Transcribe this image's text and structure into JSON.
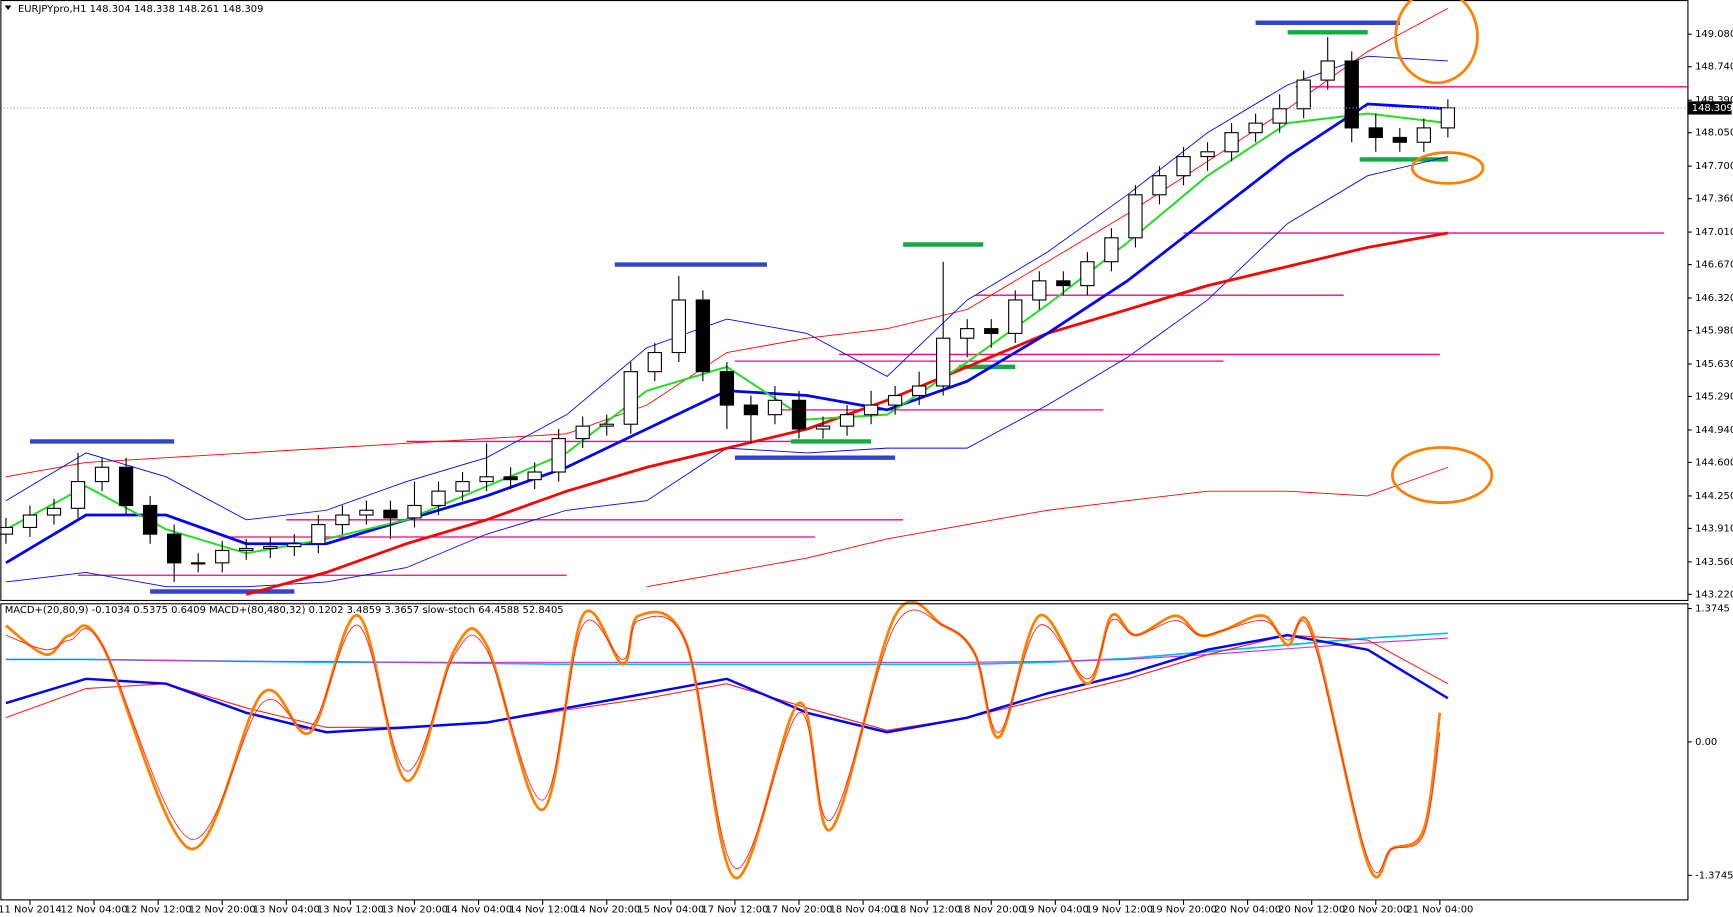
{
  "chart_data": [
    {
      "type": "candlestick",
      "title": "EURJPYpro,H1  148.304 148.338 148.261 148.309",
      "xlim": [
        -0.7,
        209.9
      ],
      "ylim": [
        143.162,
        149.438
      ],
      "yticks": [
        {
          "value": 149.08,
          "label": "149.080"
        },
        {
          "value": 148.74,
          "label": "148.740"
        },
        {
          "value": 148.39,
          "label": "148.390"
        },
        {
          "value": 148.05,
          "label": "148.050"
        },
        {
          "value": 147.7,
          "label": "147.700"
        },
        {
          "value": 147.36,
          "label": "147.360"
        },
        {
          "value": 147.01,
          "label": "147.010"
        },
        {
          "value": 146.67,
          "label": "146.670"
        },
        {
          "value": 146.32,
          "label": "146.320"
        },
        {
          "value": 145.98,
          "label": "145.980"
        },
        {
          "value": 145.63,
          "label": "145.630"
        },
        {
          "value": 145.29,
          "label": "145.290"
        },
        {
          "value": 144.94,
          "label": "144.940"
        },
        {
          "value": 144.6,
          "label": "144.600"
        },
        {
          "value": 144.25,
          "label": "144.250"
        },
        {
          "value": 143.91,
          "label": "143.910"
        },
        {
          "value": 143.56,
          "label": "143.560"
        },
        {
          "value": 143.22,
          "label": "143.220"
        }
      ],
      "xticks": [
        {
          "value": 3,
          "label": "11 Nov 2014"
        },
        {
          "value": 11,
          "label": "12 Nov 04:00"
        },
        {
          "value": 19,
          "label": "12 Nov 12:00"
        },
        {
          "value": 27,
          "label": "12 Nov 20:00"
        },
        {
          "value": 35,
          "label": "13 Nov 04:00"
        },
        {
          "value": 43,
          "label": "13 Nov 12:00"
        },
        {
          "value": 51,
          "label": "13 Nov 20:00"
        },
        {
          "value": 59,
          "label": "14 Nov 04:00"
        },
        {
          "value": 67,
          "label": "14 Nov 12:00"
        },
        {
          "value": 75,
          "label": "14 Nov 20:00"
        },
        {
          "value": 83,
          "label": "15 Nov 04:00"
        },
        {
          "value": 91,
          "label": "17 Nov 12:00"
        },
        {
          "value": 99,
          "label": "17 Nov 20:00"
        },
        {
          "value": 107,
          "label": "18 Nov 04:00"
        },
        {
          "value": 115,
          "label": "18 Nov 12:00"
        },
        {
          "value": 123,
          "label": "18 Nov 20:00"
        },
        {
          "value": 131,
          "label": "19 Nov 04:00"
        },
        {
          "value": 139,
          "label": "19 Nov 12:00"
        },
        {
          "value": 147,
          "label": "19 Nov 20:00"
        },
        {
          "value": 155,
          "label": "20 Nov 04:00"
        },
        {
          "value": 163,
          "label": "20 Nov 12:00"
        },
        {
          "value": 171,
          "label": "20 Nov 20:00"
        },
        {
          "value": 179,
          "label": "21 Nov 04:00"
        }
      ],
      "candles": {
        "x": [
          0,
          3,
          6,
          9,
          12,
          15,
          18,
          21,
          24,
          27,
          30,
          33,
          36,
          39,
          42,
          45,
          48,
          51,
          54,
          57,
          60,
          63,
          66,
          69,
          72,
          75,
          78,
          81,
          84,
          87,
          90,
          93,
          96,
          99,
          102,
          105,
          108,
          111,
          114,
          117,
          120,
          123,
          126,
          129,
          132,
          135,
          138,
          141,
          144,
          147,
          150,
          153,
          156,
          159,
          162,
          165,
          168,
          171,
          174,
          177,
          180
        ],
        "open": [
          143.85,
          143.92,
          144.05,
          144.12,
          144.4,
          144.55,
          144.15,
          143.85,
          143.55,
          143.55,
          143.68,
          143.7,
          143.72,
          143.75,
          143.95,
          144.05,
          144.1,
          144.02,
          144.15,
          144.3,
          144.4,
          144.45,
          144.42,
          144.5,
          144.85,
          144.98,
          145.0,
          145.55,
          145.75,
          146.3,
          145.55,
          145.2,
          145.1,
          145.25,
          144.95,
          144.98,
          145.1,
          145.2,
          145.3,
          145.4,
          145.9,
          146.0,
          145.95,
          146.3,
          146.5,
          146.45,
          146.7,
          146.95,
          147.4,
          147.6,
          147.8,
          147.85,
          148.05,
          148.15,
          148.3,
          148.6,
          148.8,
          148.1,
          148.0,
          147.95,
          148.1
        ],
        "high": [
          144.02,
          144.15,
          144.22,
          144.7,
          144.65,
          144.65,
          144.25,
          143.95,
          143.65,
          143.78,
          143.8,
          143.82,
          143.85,
          144.05,
          144.15,
          144.2,
          144.2,
          144.4,
          144.4,
          144.5,
          144.8,
          144.55,
          144.6,
          144.95,
          145.08,
          145.1,
          145.65,
          145.85,
          146.55,
          146.4,
          145.65,
          145.3,
          145.4,
          145.35,
          145.08,
          145.2,
          145.35,
          145.4,
          145.55,
          146.7,
          146.1,
          146.1,
          146.4,
          146.6,
          146.6,
          146.8,
          147.05,
          147.5,
          147.7,
          147.9,
          147.95,
          148.15,
          148.25,
          148.45,
          148.7,
          149.05,
          148.9,
          148.25,
          148.1,
          148.2,
          148.4
        ],
        "low": [
          143.75,
          143.82,
          143.95,
          144.02,
          144.3,
          144.05,
          143.75,
          143.35,
          143.45,
          143.45,
          143.58,
          143.6,
          143.62,
          143.65,
          143.85,
          143.95,
          143.8,
          143.92,
          144.05,
          144.2,
          144.3,
          144.32,
          144.32,
          144.4,
          144.75,
          144.88,
          144.9,
          145.45,
          145.65,
          145.45,
          144.95,
          144.8,
          145.0,
          144.85,
          144.85,
          144.88,
          145.0,
          145.1,
          145.2,
          145.3,
          145.7,
          145.8,
          145.85,
          146.2,
          146.35,
          146.35,
          146.6,
          146.85,
          147.3,
          147.5,
          147.65,
          147.75,
          147.95,
          148.05,
          148.2,
          148.5,
          147.95,
          147.85,
          147.85,
          147.85,
          148.0
        ],
        "close": [
          143.92,
          144.05,
          144.12,
          144.4,
          144.55,
          144.15,
          143.85,
          143.55,
          143.55,
          143.68,
          143.7,
          143.72,
          143.75,
          143.95,
          144.05,
          144.1,
          144.02,
          144.15,
          144.3,
          144.4,
          144.45,
          144.42,
          144.5,
          144.85,
          144.98,
          145.0,
          145.55,
          145.75,
          146.3,
          145.55,
          145.2,
          145.1,
          145.25,
          144.95,
          144.98,
          145.1,
          145.2,
          145.3,
          145.4,
          145.9,
          146.0,
          145.95,
          146.3,
          146.5,
          146.45,
          146.7,
          146.95,
          147.4,
          147.6,
          147.8,
          147.85,
          148.05,
          148.15,
          148.3,
          148.6,
          148.8,
          148.1,
          148.0,
          147.95,
          148.1,
          148.309
        ]
      },
      "x": [
        0,
        10,
        20,
        30,
        40,
        50,
        60,
        70,
        80,
        90,
        100,
        110,
        120,
        130,
        140,
        150,
        160,
        170,
        180
      ],
      "series": [
        {
          "color": "#ff0000",
          "width": 0.8,
          "values": [
            144.45,
            144.6,
            144.65,
            144.7,
            144.75,
            144.8,
            144.85,
            144.9,
            145.2,
            145.75,
            145.9,
            146.0,
            146.2,
            146.7,
            147.2,
            147.75,
            148.3,
            148.9,
            149.35
          ]
        },
        {
          "color": "#ff0000",
          "width": 0.8,
          "values": [
            null,
            null,
            null,
            null,
            null,
            null,
            null,
            null,
            143.3,
            143.45,
            143.6,
            143.8,
            143.95,
            144.1,
            144.2,
            144.3,
            144.3,
            144.25,
            144.55
          ]
        },
        {
          "color": "#0000ff",
          "width": 0.8,
          "values": [
            144.2,
            144.7,
            144.45,
            144.0,
            144.1,
            144.4,
            144.65,
            145.1,
            145.8,
            146.1,
            145.95,
            145.5,
            146.3,
            146.8,
            147.4,
            148.05,
            148.55,
            148.85,
            148.8
          ]
        },
        {
          "color": "#0000ff",
          "width": 0.8,
          "values": [
            143.35,
            143.45,
            143.3,
            143.3,
            143.35,
            143.5,
            143.85,
            144.1,
            144.2,
            144.75,
            144.7,
            144.75,
            144.75,
            145.2,
            145.7,
            146.3,
            147.1,
            147.6,
            147.8
          ]
        },
        {
          "color": "#ff0000",
          "width": 2.5,
          "values": [
            null,
            null,
            null,
            143.22,
            143.45,
            143.75,
            144.0,
            144.3,
            144.55,
            144.75,
            144.95,
            145.25,
            145.6,
            145.95,
            146.2,
            146.45,
            146.65,
            146.85,
            147.0
          ]
        },
        {
          "color": "#0000ff",
          "width": 2.5,
          "values": [
            143.55,
            144.05,
            144.05,
            143.75,
            143.75,
            144.0,
            144.25,
            144.55,
            144.95,
            145.35,
            145.3,
            145.15,
            145.45,
            145.95,
            146.5,
            147.15,
            147.8,
            148.35,
            148.3
          ]
        },
        {
          "color": "#22dd22",
          "width": 1.8,
          "values": [
            143.9,
            144.35,
            143.9,
            143.65,
            143.8,
            144.0,
            144.35,
            144.7,
            145.35,
            145.6,
            145.05,
            145.1,
            145.65,
            146.25,
            146.9,
            147.6,
            148.15,
            148.25,
            148.15
          ]
        }
      ],
      "level_color": "#ff0080",
      "levels": [
        {
          "price": 143.42,
          "from": 9,
          "to": 70
        },
        {
          "price": 143.82,
          "from": 28,
          "to": 101
        },
        {
          "price": 144.0,
          "from": 35,
          "to": 112
        },
        {
          "price": 144.82,
          "from": 50,
          "to": 104
        },
        {
          "price": 145.15,
          "from": 96,
          "to": 137
        },
        {
          "price": 145.66,
          "from": 91,
          "to": 152
        },
        {
          "price": 145.73,
          "from": 104,
          "to": 179
        },
        {
          "price": 146.35,
          "from": 121,
          "to": 167
        },
        {
          "price": 147.0,
          "from": 147,
          "to": 207
        },
        {
          "price": 148.53,
          "from": 161,
          "to": 210
        }
      ],
      "markers": [
        {
          "price": 144.82,
          "from": 3,
          "to": 21,
          "color": "#3344cc"
        },
        {
          "price": 143.25,
          "from": 18,
          "to": 36,
          "color": "#3344cc"
        },
        {
          "price": 146.67,
          "from": 76,
          "to": 95,
          "color": "#3344cc"
        },
        {
          "price": 144.65,
          "from": 91,
          "to": 111,
          "color": "#3344cc"
        },
        {
          "price": 149.2,
          "from": 156,
          "to": 174,
          "color": "#3344cc"
        },
        {
          "price": 146.88,
          "from": 112,
          "to": 122,
          "color": "#11aa44"
        },
        {
          "price": 144.82,
          "from": 98,
          "to": 108,
          "color": "#11aa44"
        },
        {
          "price": 145.6,
          "from": 119,
          "to": 126,
          "color": "#11aa44"
        },
        {
          "price": 149.1,
          "from": 160,
          "to": 170,
          "color": "#11aa44"
        },
        {
          "price": 147.77,
          "from": 169,
          "to": 180,
          "color": "#11aa44"
        }
      ]
    },
    {
      "type": "line",
      "title": "MACD+(20,80,9) -0.1034 0.5375 0.6409  MACD+(80,480,32) 0.1202 3.4859 3.3657  slow-stoch 64.4588 52.8405",
      "ylim": [
        -1.6332,
        1.4176
      ],
      "yticks": [
        1.3745,
        {
          "value": 0,
          "label": "0.00"
        },
        -1.3745
      ],
      "x": [
        0,
        10,
        20,
        30,
        40,
        50,
        60,
        70,
        80,
        90,
        100,
        110,
        120,
        130,
        140,
        150,
        160,
        170,
        180
      ],
      "series": [
        {
          "color": "#00bfff",
          "width": 1.5,
          "values": [
            0.85,
            0.85,
            0.84,
            0.83,
            0.82,
            0.82,
            0.81,
            0.8,
            0.8,
            0.8,
            0.8,
            0.8,
            0.8,
            0.82,
            0.86,
            0.93,
            1.0,
            1.07,
            1.12
          ]
        },
        {
          "color": "#cc33cc",
          "width": 1,
          "values": [
            0.85,
            0.85,
            0.84,
            0.83,
            0.83,
            0.82,
            0.82,
            0.82,
            0.82,
            0.82,
            0.82,
            0.82,
            0.82,
            0.83,
            0.85,
            0.9,
            0.96,
            1.02,
            1.07
          ]
        },
        {
          "color": "#ff2020",
          "width": 1,
          "values": [
            0.25,
            0.55,
            0.6,
            0.35,
            0.15,
            0.15,
            0.2,
            0.33,
            0.45,
            0.6,
            0.35,
            0.12,
            0.25,
            0.45,
            0.65,
            0.9,
            1.1,
            1.05,
            0.6
          ]
        },
        {
          "color": "#0000ff",
          "width": 2.2,
          "values": [
            0.4,
            0.65,
            0.6,
            0.3,
            0.1,
            0.15,
            0.2,
            0.35,
            0.5,
            0.65,
            0.3,
            0.1,
            0.25,
            0.5,
            0.7,
            0.95,
            1.1,
            0.95,
            0.45
          ]
        },
        {
          "color": "#ff8000",
          "width": 2.5,
          "smooth": true,
          "x": [
            0,
            5,
            8,
            12,
            23,
            32,
            38,
            44,
            50,
            56,
            60,
            67,
            72,
            77,
            79,
            85,
            91,
            99,
            103,
            111,
            117,
            121,
            124,
            129,
            135,
            138,
            141,
            146,
            149,
            152,
            157,
            160,
            163,
            170,
            173,
            177,
            179
          ],
          "values": [
            1.2,
            0.9,
            1.1,
            1.0,
            -1.1,
            0.5,
            0.1,
            1.3,
            -0.4,
            0.95,
            1.0,
            -0.7,
            1.3,
            0.8,
            1.3,
            1.0,
            -1.4,
            0.4,
            -0.9,
            1.3,
            1.2,
            0.9,
            0.05,
            1.3,
            0.6,
            1.3,
            1.1,
            1.3,
            1.1,
            1.15,
            1.3,
            1.0,
            1.15,
            -1.25,
            -1.1,
            -0.9,
            0.3
          ]
        },
        {
          "color": "#ff2020",
          "width": 0.8,
          "smooth": true,
          "x": [
            0,
            5,
            8,
            12,
            23,
            32,
            38,
            44,
            50,
            56,
            60,
            67,
            72,
            77,
            79,
            85,
            91,
            99,
            103,
            111,
            117,
            121,
            124,
            129,
            135,
            138,
            141,
            146,
            149,
            152,
            157,
            160,
            163,
            170,
            173,
            177,
            179
          ],
          "values": [
            1.1,
            0.95,
            1.05,
            1.0,
            -1.0,
            0.4,
            0.15,
            1.2,
            -0.3,
            0.9,
            0.95,
            -0.6,
            1.2,
            0.85,
            1.25,
            1.0,
            -1.3,
            0.3,
            -0.8,
            1.2,
            1.2,
            0.9,
            0.1,
            1.2,
            0.65,
            1.25,
            1.1,
            1.25,
            1.1,
            1.15,
            1.25,
            1.05,
            1.1,
            -1.2,
            -1.1,
            -0.95,
            0.1
          ]
        }
      ]
    }
  ]
}
